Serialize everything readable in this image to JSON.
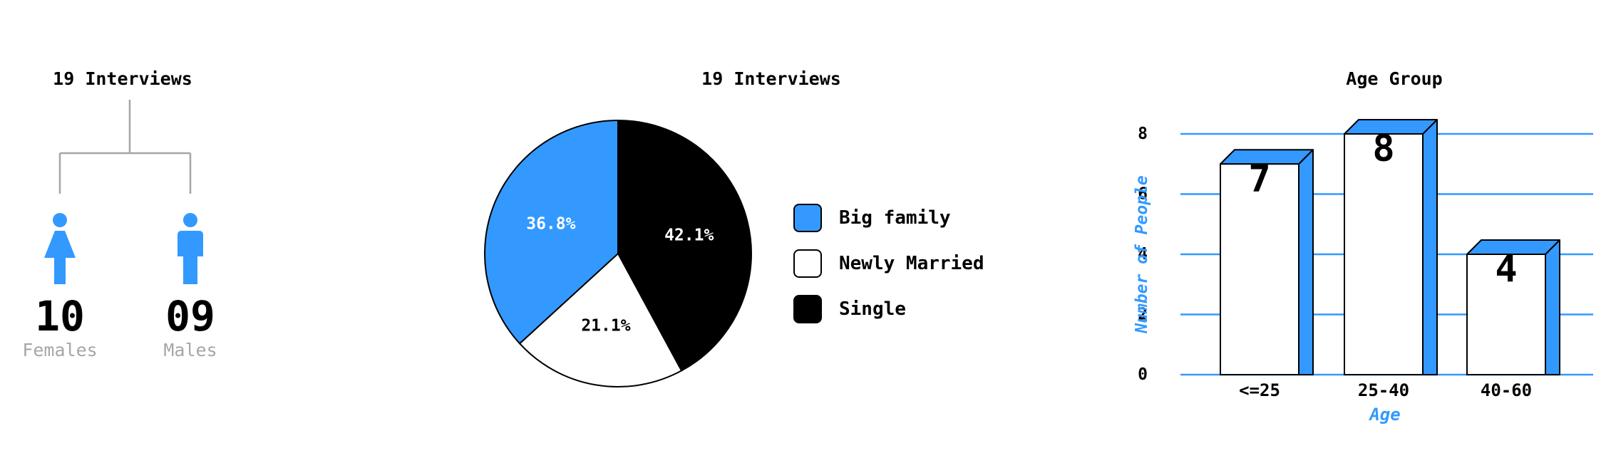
{
  "gender": {
    "title": "19 Interviews",
    "female": {
      "count": "10",
      "label": "Females",
      "icon": "female-person-icon"
    },
    "male": {
      "count": "09",
      "label": "Males",
      "icon": "male-person-icon"
    },
    "color": "#3399ff"
  },
  "chart_data": [
    {
      "type": "pie",
      "title": "19 Interviews",
      "slices": [
        {
          "label": "Single",
          "value": 42.1,
          "data_label": "42.1%",
          "color": "#000000"
        },
        {
          "label": "Newly Married",
          "value": 21.1,
          "data_label": "21.1%",
          "color": "#ffffff"
        },
        {
          "label": "Big family",
          "value": 36.8,
          "data_label": "36.8%",
          "color": "#3399ff"
        }
      ],
      "legend": [
        {
          "label": "Big family",
          "color": "#3399ff"
        },
        {
          "label": "Newly Married",
          "color": "#ffffff"
        },
        {
          "label": "Single",
          "color": "#000000"
        }
      ],
      "legend_placement": "right"
    },
    {
      "type": "bar",
      "title": "Age Group",
      "categories": [
        "<=25",
        "25-40",
        "40-60"
      ],
      "values": [
        7,
        8,
        4
      ],
      "data_labels": [
        "7",
        "8",
        "4"
      ],
      "xlabel": "Age",
      "ylabel": "Number of People",
      "ylim": [
        0,
        8
      ],
      "yticks": [
        "0",
        "2",
        "4",
        "6",
        "8"
      ],
      "grid": true,
      "style": "3d",
      "bar_color": "#ffffff",
      "side_color": "#3399ff",
      "grid_color": "#3399ff"
    }
  ]
}
